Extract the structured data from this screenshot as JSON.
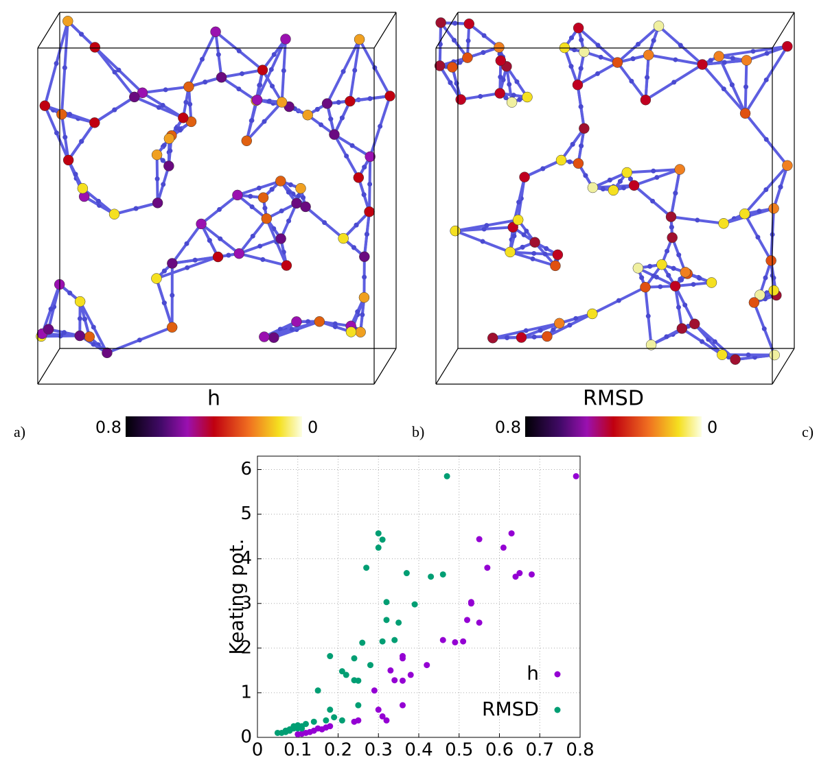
{
  "panels": [
    {
      "label": "a)",
      "colorbar": {
        "title": "h",
        "ticks": [
          0.8,
          0
        ]
      }
    },
    {
      "label": "b)",
      "colorbar": {
        "title": "RMSD",
        "ticks": [
          0.8,
          0
        ]
      }
    },
    {
      "label": "c)"
    }
  ],
  "chart_data": {
    "type": "scatter",
    "ylabel": "Keating pot.",
    "xlim": [
      0,
      0.8
    ],
    "ylim": [
      0,
      6.3
    ],
    "xticks": [
      0,
      0.1,
      0.2,
      0.3,
      0.4,
      0.5,
      0.6,
      0.7,
      0.8
    ],
    "yticks": [
      0,
      1,
      2,
      3,
      4,
      5,
      6
    ],
    "grid": true,
    "legend": "lower-right",
    "series": [
      {
        "name": "h",
        "color": "#9400d3",
        "x": [
          0.79,
          0.63,
          0.61,
          0.55,
          0.57,
          0.65,
          0.68,
          0.64,
          0.53,
          0.53,
          0.52,
          0.55,
          0.46,
          0.49,
          0.51,
          0.42,
          0.36,
          0.36,
          0.33,
          0.34,
          0.36,
          0.38,
          0.29,
          0.36,
          0.3,
          0.31,
          0.32,
          0.25,
          0.24,
          0.18,
          0.17,
          0.15,
          0.14,
          0.13,
          0.12,
          0.11,
          0.16,
          0.1
        ],
        "values": [
          5.85,
          4.57,
          4.25,
          4.44,
          3.8,
          3.68,
          3.65,
          3.6,
          3.03,
          3.0,
          2.63,
          2.57,
          2.18,
          2.13,
          2.15,
          1.62,
          1.82,
          1.77,
          1.5,
          1.28,
          1.27,
          1.4,
          1.05,
          0.72,
          0.62,
          0.47,
          0.38,
          0.38,
          0.35,
          0.25,
          0.22,
          0.2,
          0.15,
          0.12,
          0.1,
          0.08,
          0.18,
          0.07
        ]
      },
      {
        "name": "RMSD",
        "color": "#009e73",
        "x": [
          0.47,
          0.3,
          0.31,
          0.3,
          0.27,
          0.37,
          0.46,
          0.43,
          0.32,
          0.39,
          0.32,
          0.35,
          0.26,
          0.31,
          0.34,
          0.18,
          0.28,
          0.21,
          0.22,
          0.24,
          0.25,
          0.24,
          0.15,
          0.25,
          0.18,
          0.19,
          0.17,
          0.21,
          0.14,
          0.12,
          0.11,
          0.1,
          0.09,
          0.08,
          0.07,
          0.06,
          0.05,
          0.1,
          0.09,
          0.08,
          0.07,
          0.11
        ],
        "values": [
          5.85,
          4.57,
          4.43,
          4.25,
          3.8,
          3.68,
          3.65,
          3.6,
          3.03,
          2.98,
          2.63,
          2.57,
          2.12,
          2.15,
          2.18,
          1.82,
          1.62,
          1.48,
          1.4,
          1.28,
          1.27,
          1.77,
          1.05,
          0.72,
          0.62,
          0.45,
          0.38,
          0.38,
          0.35,
          0.3,
          0.25,
          0.27,
          0.2,
          0.15,
          0.12,
          0.1,
          0.1,
          0.2,
          0.25,
          0.18,
          0.15,
          0.2
        ]
      }
    ]
  }
}
